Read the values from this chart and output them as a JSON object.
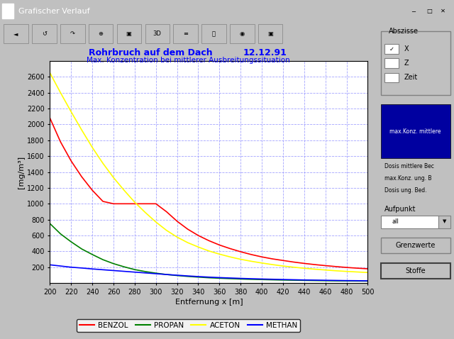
{
  "title_left": "Rohrbruch auf dem Dach",
  "title_right": "12.12.91",
  "subtitle": "Max. Konzentration bei mittlerer Ausbreitungssituation",
  "xlabel": "Entfernung x [m]",
  "ylabel": "[mg/m³]",
  "xlim": [
    200,
    500
  ],
  "ylim": [
    0,
    2800
  ],
  "yticks": [
    200,
    400,
    600,
    800,
    1000,
    1200,
    1400,
    1600,
    1800,
    2000,
    2200,
    2400,
    2600
  ],
  "xticks": [
    200,
    220,
    240,
    260,
    280,
    300,
    320,
    340,
    360,
    380,
    400,
    420,
    440,
    460,
    480,
    500
  ],
  "title_color": "#0000FF",
  "subtitle_color": "#0000FF",
  "bg_color": "#C0C0C0",
  "plot_bg_color": "#FFFFFF",
  "grid_color": "#9999FF",
  "legend_labels": [
    "BENZOL",
    "PROPAN",
    "ACETON",
    "METHAN"
  ],
  "line_colors": [
    "#FF0000",
    "#008000",
    "#FFFF00",
    "#0000FF"
  ],
  "titlebar_color": "#000080",
  "titlebar_text": "Grafischer Verlauf",
  "right_panel_labels": [
    "Abszisse",
    "X",
    "Z",
    "Zeit",
    "max.Konz. mittlere",
    "Dosis mittlere Bec",
    "max.Konz. ung. B",
    "Dosis ung. Bed.",
    "Aufpunkt",
    "all",
    "Grenzwerte",
    "Stoffe"
  ],
  "x_data": [
    200,
    210,
    220,
    230,
    240,
    250,
    260,
    270,
    280,
    290,
    300,
    310,
    320,
    330,
    340,
    350,
    360,
    370,
    380,
    390,
    400,
    410,
    420,
    430,
    440,
    450,
    460,
    470,
    480,
    490,
    500
  ],
  "benzol": [
    2080,
    1780,
    1540,
    1340,
    1170,
    1030,
    1000,
    1000,
    1000,
    1000,
    1000,
    900,
    780,
    680,
    600,
    535,
    480,
    435,
    395,
    360,
    330,
    305,
    285,
    265,
    248,
    233,
    220,
    208,
    197,
    188,
    180
  ],
  "propan": [
    750,
    620,
    520,
    430,
    360,
    295,
    245,
    205,
    170,
    145,
    125,
    108,
    95,
    84,
    75,
    67,
    61,
    56,
    51,
    47,
    44,
    41,
    38,
    36,
    34,
    32,
    30,
    28,
    27,
    26,
    25
  ],
  "aceton": [
    2650,
    2400,
    2160,
    1930,
    1710,
    1510,
    1330,
    1170,
    1020,
    890,
    770,
    665,
    580,
    510,
    455,
    405,
    365,
    330,
    300,
    275,
    253,
    233,
    215,
    200,
    187,
    175,
    165,
    155,
    147,
    140,
    133
  ],
  "methan": [
    230,
    215,
    200,
    190,
    178,
    168,
    158,
    148,
    138,
    128,
    118,
    108,
    99,
    90,
    82,
    75,
    69,
    64,
    59,
    55,
    51,
    48,
    45,
    42,
    39,
    37,
    35,
    33,
    31,
    30,
    28
  ]
}
